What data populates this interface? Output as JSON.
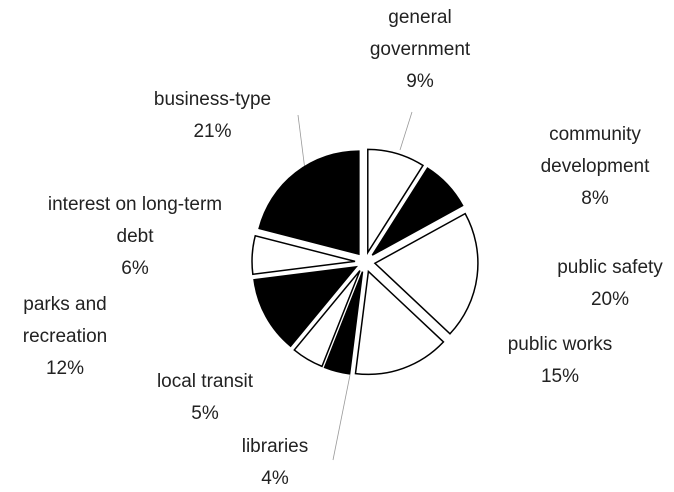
{
  "chart_data": {
    "type": "pie",
    "categories": [
      "general government",
      "community development",
      "public safety",
      "public works",
      "libraries",
      "local transit",
      "parks and recreation",
      "interest on long-term debt",
      "business-type"
    ],
    "values": [
      9,
      8,
      20,
      15,
      4,
      5,
      12,
      6,
      21
    ],
    "value_labels": [
      "9%",
      "8%",
      "20%",
      "15%",
      "4%",
      "5%",
      "12%",
      "6%",
      "21%"
    ],
    "colors": [
      "#ffffff",
      "#000000",
      "#ffffff",
      "#ffffff",
      "#000000",
      "#ffffff",
      "#000000",
      "#ffffff",
      "#000000"
    ]
  }
}
